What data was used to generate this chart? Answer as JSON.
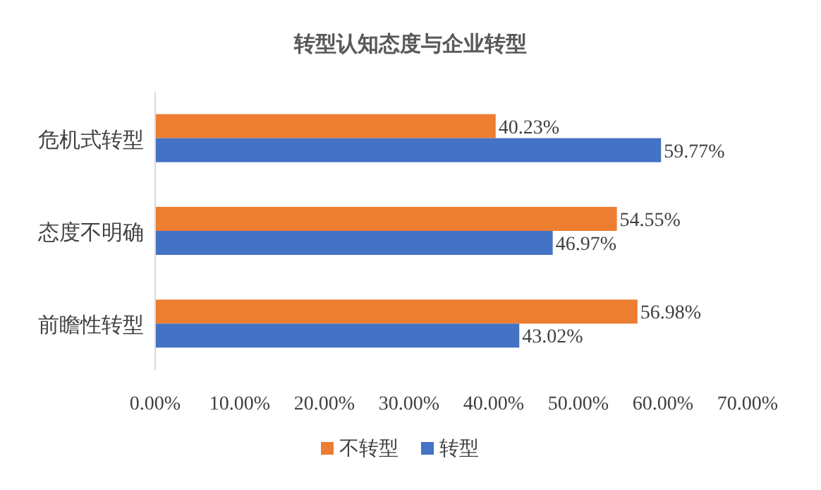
{
  "chart_data": {
    "type": "bar",
    "orientation": "horizontal",
    "title": "转型认知态度与企业转型",
    "categories": [
      "危机式转型",
      "态度不明确",
      "前瞻性转型"
    ],
    "series": [
      {
        "name": "不转型",
        "color": "#ed7d31",
        "values": [
          40.23,
          54.55,
          56.98
        ],
        "value_labels": [
          "40.23%",
          "54.55%",
          "56.98%"
        ]
      },
      {
        "name": "转型",
        "color": "#4472c4",
        "values": [
          59.77,
          46.97,
          43.02
        ],
        "value_labels": [
          "59.77%",
          "46.97%",
          "43.02%"
        ]
      }
    ],
    "xlim": [
      0,
      70
    ],
    "xticks": [
      {
        "value": 0,
        "label": "0.00%"
      },
      {
        "value": 10,
        "label": "10.00%"
      },
      {
        "value": 20,
        "label": "20.00%"
      },
      {
        "value": 30,
        "label": "30.00%"
      },
      {
        "value": 40,
        "label": "40.00%"
      },
      {
        "value": 50,
        "label": "50.00%"
      },
      {
        "value": 60,
        "label": "60.00%"
      },
      {
        "value": 70,
        "label": "70.00%"
      }
    ],
    "grid": false,
    "legend": "bottom"
  }
}
